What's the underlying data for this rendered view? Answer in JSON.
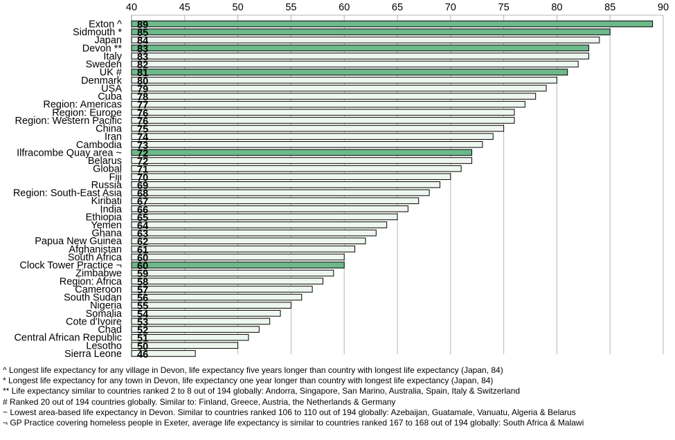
{
  "chart_data": {
    "type": "bar",
    "orientation": "horizontal",
    "xlim": [
      40,
      90
    ],
    "x_ticks": [
      "40",
      "45",
      "50",
      "55",
      "60",
      "65",
      "70",
      "75",
      "80",
      "85",
      "90"
    ],
    "x_axis_position": "top",
    "grid": true,
    "categories": [
      "Exton ^",
      "Sidmouth *",
      "Japan",
      "Devon **",
      "Italy",
      "Sweden",
      "UK #",
      "Denmark",
      "USA",
      "Cuba",
      "Region: Americas",
      "Region: Europe",
      "Region: Western Pacific",
      "China",
      "Iran",
      "Cambodia",
      "Ilfracombe Quay area ~",
      "Belarus",
      "Global",
      "Fiji",
      "Russia",
      "Region: South-East Asia",
      "Kiribati",
      "India",
      "Ethiopia",
      "Yemen",
      "Ghana",
      "Papua New Guinea",
      "Afghanistan",
      "South Africa",
      "Clock Tower Practice ¬",
      "Zimbabwe",
      "Region: Africa",
      "Cameroon",
      "South Sudan",
      "Nigeria",
      "Somalia",
      "Cote d'Ivoire",
      "Chad",
      "Central African Republic",
      "Lesotho",
      "Sierra Leone"
    ],
    "values": [
      89,
      85,
      84,
      83,
      83,
      82,
      81,
      80,
      79,
      78,
      77,
      76,
      76,
      75,
      74,
      73,
      72,
      72,
      71,
      70,
      69,
      68,
      67,
      66,
      65,
      64,
      63,
      62,
      61,
      60,
      60,
      59,
      58,
      57,
      56,
      55,
      54,
      53,
      52,
      51,
      50,
      46
    ],
    "value_labels": [
      "89",
      "85",
      "84",
      "83",
      "83",
      "82",
      "81",
      "80",
      "79",
      "78",
      "77",
      "76",
      "76",
      "75",
      "74",
      "73",
      "72",
      "72",
      "71",
      "70",
      "69",
      "68",
      "67",
      "66",
      "65",
      "64",
      "63",
      "62",
      "61",
      "60",
      "60",
      "59",
      "58",
      "57",
      "56",
      "55",
      "54",
      "53",
      "52",
      "51",
      "50",
      "46"
    ],
    "highlighted": [
      "Exton ^",
      "Sidmouth *",
      "Devon **",
      "UK #",
      "Ilfracombe Quay area ~",
      "Clock Tower Practice ¬"
    ],
    "colors": {
      "highlight_fill": "#6db98a",
      "normal_fill": "#eef7ef",
      "bar_stroke": "#000000",
      "grid": "#b5b5b5"
    }
  },
  "notes": [
    "^ Longest life expectancy for any village  in Devon,  life expectancy five years longer than country with longest life expectancy (Japan,  84)",
    "* Longest life expectancy for any town in Devon,  life expectancy one year longer than country with longest life expectancy (Japan, 84)",
    "** Life expectancy similar to countries ranked  2 to 8 out of 194 globally: Andorra,  Singapore,  San Marino,  Australia,  Spain, Italy & Switzerland",
    "# Ranked 20 out of 194 countries globally. Similar to: Finland, Greece, Austria, the Netherlands  & Germany",
    "~ Lowest area-based  life expectancy in Devon.  Similar to countries ranked 106 to 110 out of 194 globally: Azebaijan, Guatamale, Vanuatu, Algeria & Belarus",
    "¬ GP Practice covering homeless people  in Exeter, average  life expectancy is similar to countries ranked 167 to 168 out of 194 globally: South Africa & Malawi"
  ]
}
